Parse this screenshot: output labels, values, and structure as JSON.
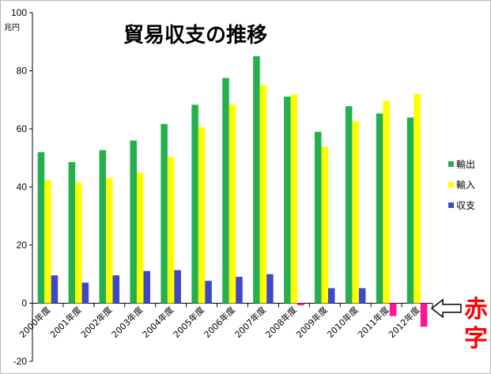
{
  "chart_data": {
    "type": "bar",
    "title": "貿易収支の推移",
    "ylabel": "兆円",
    "xlabel": "",
    "ylim": [
      -20,
      100
    ],
    "yticks": [
      -20,
      0,
      20,
      40,
      60,
      80,
      100
    ],
    "grid": false,
    "legend": "right",
    "categories": [
      "2000年度",
      "2001年度",
      "2002年度",
      "2003年度",
      "2004年度",
      "2005年度",
      "2006年度",
      "2007年度",
      "2008年度",
      "2009年度",
      "2010年度",
      "2011年度",
      "2012年度"
    ],
    "series": [
      {
        "name": "輸出",
        "color": "#22b14c",
        "values": [
          52,
          48.6,
          52.7,
          56,
          61.7,
          68.3,
          77.5,
          85,
          71.1,
          59,
          67.8,
          65.3,
          63.9
        ]
      },
      {
        "name": "輸入",
        "color": "#ffff00",
        "values": [
          42.4,
          41.5,
          43.1,
          44.9,
          50.3,
          60.6,
          68.4,
          75,
          71.8,
          53.8,
          62.6,
          69.7,
          72
        ]
      },
      {
        "name": "収支",
        "color": "#3f48cc",
        "values": [
          9.6,
          7.1,
          9.6,
          11.1,
          11.4,
          7.7,
          9.1,
          10,
          -0.7,
          5.2,
          5.2,
          -4.4,
          -8.1
        ]
      }
    ],
    "negative_balance_color": "#ff1493",
    "annotation": {
      "text": "赤字",
      "color": "#ff0000"
    }
  }
}
